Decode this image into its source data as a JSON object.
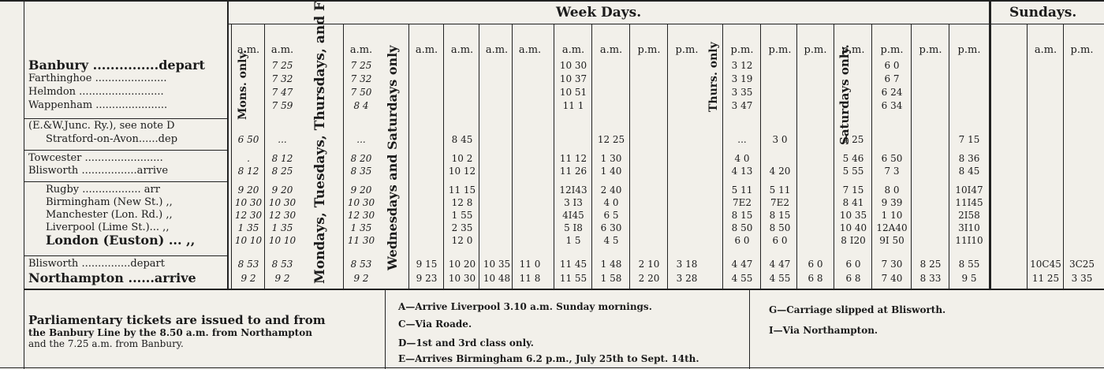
{
  "headers": {
    "week_days": "Week Days.",
    "sundays": "Sundays."
  },
  "ampm": [
    "a.m.",
    "a.m.",
    "a.m.",
    "a.m.",
    "a.m.",
    "a.m.",
    "a.m.",
    "a.m.",
    "a.m.",
    "p.m.",
    "p.m.",
    "p.m.",
    "p.m.",
    "p.m.",
    "p.m.",
    "p.m.",
    "p.m.",
    "p.m.",
    "a.m.",
    "p.m."
  ],
  "vertical_labels": {
    "mons": "Mons. only.",
    "mtt": "Mondays, Tuesdays, Thursdays, and Fridays only.",
    "ws": "Wednesdays and Saturdays only",
    "thurs": "Thurs. only",
    "sat": "Saturdays only."
  },
  "stations": [
    {
      "name": "Banbury ...............depart",
      "style": "big"
    },
    {
      "name": "Farthinghoe ......................",
      "style": "normal"
    },
    {
      "name": "Helmdon ..........................",
      "style": "normal"
    },
    {
      "name": "Wappenham ......................",
      "style": "normal"
    },
    {
      "name": "(E.&W.Junc. Ry.), see note D",
      "style": "normal"
    },
    {
      "name": "Stratford-on-Avon......dep",
      "style": "ind"
    },
    {
      "name": "Towcester ........................",
      "style": "normal"
    },
    {
      "name": "Blisworth .................arrive",
      "style": "normal"
    },
    {
      "name": "Rugby .................. arr",
      "style": "ind"
    },
    {
      "name": "Birmingham (New St.) ,,",
      "style": "ind"
    },
    {
      "name": "Manchester (Lon. Rd.) ,,",
      "style": "ind"
    },
    {
      "name": "Liverpool (Lime St.)... ,,",
      "style": "ind"
    },
    {
      "name": "London (Euston) ... ,,",
      "style": "bigind"
    },
    {
      "name": "Blisworth ...............depart",
      "style": "normal"
    },
    {
      "name": "Northampton ......arrive",
      "style": "big"
    }
  ],
  "times": {
    "c0": [
      "",
      "",
      "",
      "",
      "",
      "6 50",
      ".",
      "8 12",
      "9 20",
      "10 30",
      "12 30",
      "1 35",
      "10 10",
      "8 53",
      "9 2"
    ],
    "c1": [
      "7 25",
      "7 32",
      "7 47",
      "7 59",
      "",
      "...",
      "8 12",
      "8 25",
      "9 20",
      "10 30",
      "12 30",
      "1 35",
      "10 10",
      "8 53",
      "9 2"
    ],
    "c2": [
      "7 25",
      "7 32",
      "7 50",
      "8 4",
      "",
      "...",
      "8 20",
      "8 35",
      "9 20",
      "10 30",
      "12 30",
      "1 35",
      "11 30",
      "8 53",
      "9 2"
    ],
    "c3": [
      "",
      "",
      "",
      "",
      "",
      "",
      "",
      "",
      "",
      "",
      "",
      "",
      "",
      "9 15",
      "9 23"
    ],
    "c4": [
      "",
      "",
      "",
      "",
      "",
      "8 45",
      "10 2",
      "10 12",
      "11 15",
      "12 8",
      "1 55",
      "2 35",
      "12 0",
      "10 20",
      "10 30"
    ],
    "c5": [
      "",
      "",
      "",
      "",
      "",
      "",
      "",
      "",
      "",
      "",
      "",
      "",
      "",
      "10 35",
      "10 48"
    ],
    "c6": [
      "",
      "",
      "",
      "",
      "",
      "",
      "",
      "",
      "",
      "",
      "",
      "",
      "",
      "11 0",
      "11 8"
    ],
    "c7": [
      "10 30",
      "10 37",
      "10 51",
      "11 1",
      "",
      "",
      "11 12",
      "11 26",
      "12I43",
      "3 I3",
      "4I45",
      "5 I8",
      "1 5",
      "11 45",
      "11 55"
    ],
    "c8": [
      "",
      "",
      "",
      "",
      "",
      "12 25",
      "1 30",
      "1 40",
      "2 40",
      "4 0",
      "6 5",
      "6 30",
      "4 5",
      "1 48",
      "1 58"
    ],
    "c9": [
      "",
      "",
      "",
      "",
      "",
      "",
      "",
      "",
      "",
      "",
      "",
      "",
      "",
      "2 10",
      "2 20"
    ],
    "c10": [
      "",
      "",
      "",
      "",
      "",
      "",
      "",
      "",
      "",
      "",
      "",
      "",
      "",
      "3 18",
      "3 28"
    ],
    "c11": [
      "3 12",
      "3 19",
      "3 35",
      "3 47",
      "",
      "...",
      "4 0",
      "4 13",
      "5 11",
      "7E2",
      "8 15",
      "8 50",
      "6 0",
      "4 47",
      "4 55"
    ],
    "c12": [
      "",
      "",
      "",
      "",
      "",
      "3 0",
      "",
      "4 20",
      "5 11",
      "7E2",
      "8 15",
      "8 50",
      "6 0",
      "4 47",
      "4 55"
    ],
    "c13": [
      "",
      "",
      "",
      "",
      "",
      "",
      "",
      "",
      "",
      "",
      "",
      "",
      "",
      "6 0",
      "6 8"
    ],
    "c14": [
      "",
      "",
      "",
      "",
      "",
      "4 25",
      "5 46",
      "5 55",
      "7 15",
      "8 41",
      "10 35",
      "10 40",
      "8 I20",
      "6 0",
      "6 8"
    ],
    "c15": [
      "6 0",
      "6 7",
      "6 24",
      "6 34",
      "",
      "",
      "6 50",
      "7 3",
      "8 0",
      "9 39",
      "1 10",
      "12A40",
      "9I 50",
      "7 30",
      "7 40"
    ],
    "c16": [
      "",
      "",
      "",
      "",
      "",
      "",
      "",
      "",
      "",
      "",
      "",
      "",
      "",
      "8 25",
      "8 33"
    ],
    "c17": [
      "",
      "",
      "",
      "",
      "",
      "7 15",
      "8 36",
      "8 45",
      "10I47",
      "11I45",
      "2I58",
      "3I10",
      "11I10",
      "8 55",
      "9 5"
    ],
    "c18": [
      "",
      "",
      "",
      "",
      "",
      "",
      "",
      "",
      "",
      "",
      "",
      "",
      "",
      "10C45",
      "11 25"
    ],
    "c19": [
      "",
      "",
      "",
      "",
      "",
      "",
      "",
      "",
      "",
      "",
      "",
      "",
      "",
      "3C25",
      "3 35"
    ]
  },
  "notes": {
    "parl_title": "Parliamentary tickets are issued to and from",
    "parl_line2": "the Banbury Line by the 8.50 a.m. from Northampton",
    "parl_line3": "and the 7.25 a.m. from Banbury.",
    "A": "A—Arrive Liverpool 3.10 a.m. Sunday mornings.",
    "C": "C—Via Roade.",
    "D": "D—1st and 3rd class only.",
    "E": "E—Arrives Birmingham 6.2 p.m., July 25th to Sept. 14th.",
    "G": "G—Carriage slipped at Blisworth.",
    "I": "I—Via Northampton."
  }
}
